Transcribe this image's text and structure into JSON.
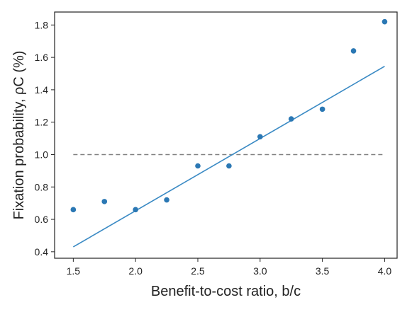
{
  "chart_data": {
    "type": "scatter",
    "title": "",
    "xlabel": "Benefit-to-cost ratio, b/c",
    "ylabel": "Fixation probability, ρC (%)",
    "xlim": [
      1.35,
      4.1
    ],
    "ylim": [
      0.36,
      1.88
    ],
    "xticks": [
      1.5,
      2.0,
      2.5,
      3.0,
      3.5,
      4.0
    ],
    "xtick_labels": [
      "1.5",
      "2.0",
      "2.5",
      "3.0",
      "3.5",
      "4.0"
    ],
    "yticks": [
      0.4,
      0.6,
      0.8,
      1.0,
      1.2,
      1.4,
      1.6,
      1.8
    ],
    "ytick_labels": [
      "0.4",
      "0.6",
      "0.8",
      "1.0",
      "1.2",
      "1.4",
      "1.6",
      "1.8"
    ],
    "grid": false,
    "legend": false,
    "colors": {
      "points": "#2b78b4",
      "fit": "#3a8ac4",
      "reference": "#808080",
      "axes": "#222222"
    },
    "series": [
      {
        "kind": "scatter",
        "x": [
          1.5,
          1.75,
          2.0,
          2.25,
          2.5,
          2.75,
          3.0,
          3.25,
          3.5,
          3.75,
          4.0
        ],
        "y": [
          0.66,
          0.71,
          0.66,
          0.72,
          0.93,
          0.93,
          1.11,
          1.22,
          1.28,
          1.64,
          1.82
        ]
      },
      {
        "kind": "line",
        "x": [
          1.5,
          4.0
        ],
        "y": [
          0.43,
          1.545
        ]
      },
      {
        "kind": "hline",
        "style": "dashed",
        "x": [
          1.5,
          4.0
        ],
        "y": [
          1.0,
          1.0
        ]
      }
    ]
  }
}
